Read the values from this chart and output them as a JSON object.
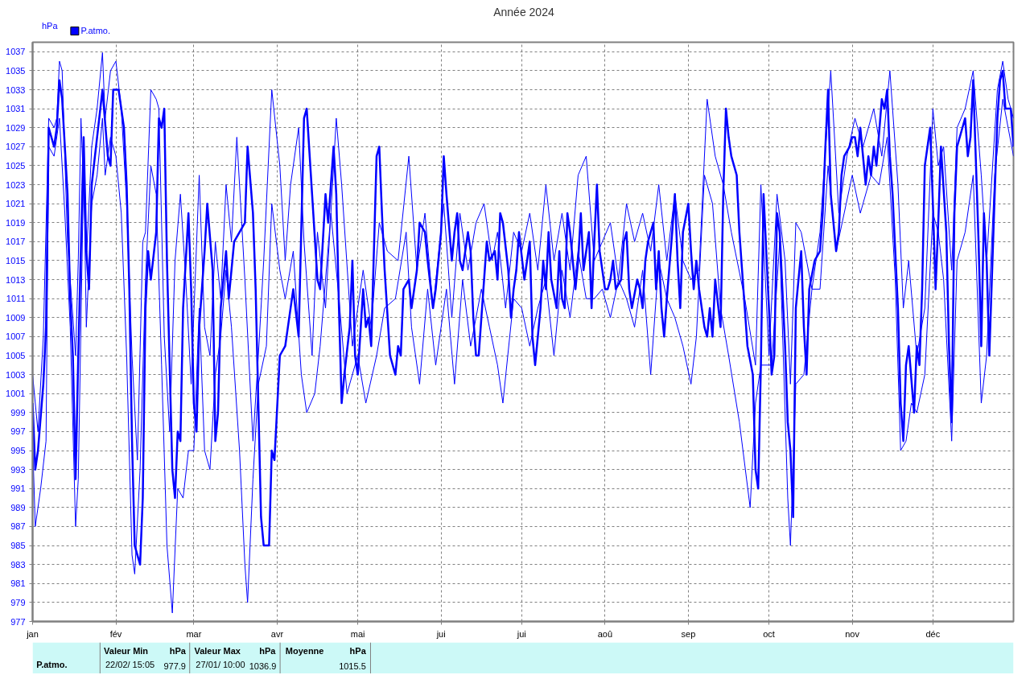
{
  "chart_data": {
    "type": "line",
    "title": "Année 2024",
    "ylabel": "hPa",
    "x": [
      "2024-01-01",
      "2024-01-02",
      "2024-01-03",
      "2024-01-05",
      "2024-01-06",
      "2024-01-07",
      "2024-01-09",
      "2024-01-10",
      "2024-01-11",
      "2024-01-12",
      "2024-01-14",
      "2024-01-15",
      "2024-01-16",
      "2024-01-17",
      "2024-01-18",
      "2024-01-20",
      "2024-01-21",
      "2024-01-22",
      "2024-01-23",
      "2024-01-25",
      "2024-01-27",
      "2024-01-29",
      "2024-01-30",
      "2024-01-31",
      "2024-02-02",
      "2024-02-04",
      "2024-02-05",
      "2024-02-06",
      "2024-02-07",
      "2024-02-08",
      "2024-02-10",
      "2024-02-11",
      "2024-02-12",
      "2024-02-13",
      "2024-02-14",
      "2024-02-16",
      "2024-02-17",
      "2024-02-18",
      "2024-02-19",
      "2024-02-20",
      "2024-02-22",
      "2024-02-23",
      "2024-02-24",
      "2024-02-25",
      "2024-02-26",
      "2024-02-28",
      "2024-02-29",
      "2024-03-01",
      "2024-03-02",
      "2024-03-03",
      "2024-03-05",
      "2024-03-06",
      "2024-03-08",
      "2024-03-09",
      "2024-03-10",
      "2024-03-11",
      "2024-03-13",
      "2024-03-14",
      "2024-03-16",
      "2024-03-18",
      "2024-03-20",
      "2024-03-21",
      "2024-03-23",
      "2024-03-24",
      "2024-03-25",
      "2024-03-26",
      "2024-03-27",
      "2024-03-29",
      "2024-03-30",
      "2024-03-31",
      "2024-04-02",
      "2024-04-04",
      "2024-04-05",
      "2024-04-07",
      "2024-04-09",
      "2024-04-11",
      "2024-04-12",
      "2024-04-14",
      "2024-04-16",
      "2024-04-17",
      "2024-04-18",
      "2024-04-19",
      "2024-04-20",
      "2024-04-22",
      "2024-04-23",
      "2024-04-24",
      "2024-04-25",
      "2024-04-26",
      "2024-04-28",
      "2024-04-29",
      "2024-04-30",
      "2024-05-01",
      "2024-05-03",
      "2024-05-04",
      "2024-05-05",
      "2024-05-06",
      "2024-05-08",
      "2024-05-09",
      "2024-05-10",
      "2024-05-11",
      "2024-05-13",
      "2024-05-15",
      "2024-05-16",
      "2024-05-17",
      "2024-05-18",
      "2024-05-20",
      "2024-05-21",
      "2024-05-23",
      "2024-05-24",
      "2024-05-26",
      "2024-05-27",
      "2024-05-29",
      "2024-05-30",
      "2024-06-01",
      "2024-06-02",
      "2024-06-03",
      "2024-06-05",
      "2024-06-06",
      "2024-06-07",
      "2024-06-08",
      "2024-06-09",
      "2024-06-11",
      "2024-06-12",
      "2024-06-13",
      "2024-06-14",
      "2024-06-15",
      "2024-06-17",
      "2024-06-18",
      "2024-06-19",
      "2024-06-21",
      "2024-06-22",
      "2024-06-23",
      "2024-06-24",
      "2024-06-26",
      "2024-06-27",
      "2024-06-28",
      "2024-06-29",
      "2024-06-30",
      "2024-07-02",
      "2024-07-03",
      "2024-07-04",
      "2024-07-05",
      "2024-07-06",
      "2024-07-08",
      "2024-07-09",
      "2024-07-10",
      "2024-07-11",
      "2024-07-12",
      "2024-07-14",
      "2024-07-15",
      "2024-07-16",
      "2024-07-17",
      "2024-07-18",
      "2024-07-19",
      "2024-07-21",
      "2024-07-22",
      "2024-07-23",
      "2024-07-24",
      "2024-07-26",
      "2024-07-27",
      "2024-07-28",
      "2024-07-29",
      "2024-07-30",
      "2024-08-01",
      "2024-08-02",
      "2024-08-03",
      "2024-08-04",
      "2024-08-05",
      "2024-08-07",
      "2024-08-08",
      "2024-08-09",
      "2024-08-10",
      "2024-08-11",
      "2024-08-13",
      "2024-08-14",
      "2024-08-15",
      "2024-08-16",
      "2024-08-17",
      "2024-08-19",
      "2024-08-20",
      "2024-08-21",
      "2024-08-22",
      "2024-08-23",
      "2024-08-24",
      "2024-08-26",
      "2024-08-27",
      "2024-08-28",
      "2024-08-29",
      "2024-08-30",
      "2024-09-01",
      "2024-09-02",
      "2024-09-03",
      "2024-09-04",
      "2024-09-05",
      "2024-09-07",
      "2024-09-08",
      "2024-09-09",
      "2024-09-10",
      "2024-09-11",
      "2024-09-13",
      "2024-09-14",
      "2024-09-15",
      "2024-09-16",
      "2024-09-17",
      "2024-09-19",
      "2024-09-20",
      "2024-09-21",
      "2024-09-22",
      "2024-09-23",
      "2024-09-25",
      "2024-09-26",
      "2024-09-27",
      "2024-09-28",
      "2024-09-29",
      "2024-10-01",
      "2024-10-02",
      "2024-10-03",
      "2024-10-04",
      "2024-10-05",
      "2024-10-07",
      "2024-10-08",
      "2024-10-09",
      "2024-10-10",
      "2024-10-11",
      "2024-10-13",
      "2024-10-14",
      "2024-10-15",
      "2024-10-16",
      "2024-10-18",
      "2024-10-20",
      "2024-10-21",
      "2024-10-22",
      "2024-10-23",
      "2024-10-24",
      "2024-10-26",
      "2024-10-27",
      "2024-10-28",
      "2024-10-29",
      "2024-10-31",
      "2024-11-01",
      "2024-11-02",
      "2024-11-03",
      "2024-11-04",
      "2024-11-06",
      "2024-11-07",
      "2024-11-08",
      "2024-11-09",
      "2024-11-10",
      "2024-11-12",
      "2024-11-13",
      "2024-11-14",
      "2024-11-15",
      "2024-11-16",
      "2024-11-18",
      "2024-11-19",
      "2024-11-20",
      "2024-11-21",
      "2024-11-22",
      "2024-11-24",
      "2024-11-25",
      "2024-11-26",
      "2024-11-27",
      "2024-11-28",
      "2024-11-30",
      "2024-12-01",
      "2024-12-02",
      "2024-12-03",
      "2024-12-04",
      "2024-12-06",
      "2024-12-07",
      "2024-12-08",
      "2024-12-09",
      "2024-12-10",
      "2024-12-12",
      "2024-12-13",
      "2024-12-14",
      "2024-12-15",
      "2024-12-16",
      "2024-12-18",
      "2024-12-19",
      "2024-12-20",
      "2024-12-21",
      "2024-12-22",
      "2024-12-24",
      "2024-12-25",
      "2024-12-26",
      "2024-12-27",
      "2024-12-28",
      "2024-12-30",
      "2024-12-31"
    ],
    "series": [
      {
        "name": "P.atmo.",
        "color": "#0000ff",
        "values": [
          1000,
          993,
          995,
          1002,
          1008,
          1029,
          1027,
          1029,
          1034,
          1032,
          1022,
          1011,
          1005,
          992,
          1005,
          1028,
          1016,
          1012,
          1023,
          1028,
          1033,
          1026,
          1025,
          1033,
          1033,
          1029,
          1023,
          1012,
          996,
          985,
          983,
          990,
          1010,
          1016,
          1013,
          1018,
          1030,
          1029,
          1031,
          1015,
          993,
          990,
          997,
          996,
          1010,
          1020,
          1012,
          1000,
          997,
          1008,
          1016,
          1021,
          1014,
          996,
          999,
          1010,
          1016,
          1011,
          1017,
          1018,
          1019,
          1027,
          1020,
          1012,
          1000,
          988,
          985,
          985,
          995,
          994,
          1005,
          1006,
          1008,
          1012,
          1007,
          1030,
          1031,
          1022,
          1013,
          1012,
          1017,
          1022,
          1019,
          1027,
          1022,
          1010,
          1000,
          1003,
          1008,
          1015,
          1005,
          1003,
          1012,
          1008,
          1009,
          1006,
          1026,
          1027,
          1020,
          1014,
          1005,
          1003,
          1006,
          1005,
          1012,
          1013,
          1010,
          1014,
          1019,
          1018,
          1015,
          1010,
          1012,
          1018,
          1026,
          1022,
          1015,
          1018,
          1020,
          1015,
          1014,
          1018,
          1016,
          1009,
          1005,
          1005,
          1013,
          1017,
          1015,
          1016,
          1013,
          1020,
          1019,
          1014,
          1009,
          1012,
          1014,
          1018,
          1013,
          1015,
          1017,
          1007,
          1004,
          1010,
          1015,
          1012,
          1018,
          1013,
          1010,
          1016,
          1011,
          1010,
          1020,
          1018,
          1012,
          1015,
          1020,
          1014,
          1018,
          1010,
          1017,
          1023,
          1016,
          1012,
          1012,
          1013,
          1015,
          1012,
          1013,
          1017,
          1018,
          1012,
          1010,
          1013,
          1012,
          1010,
          1015,
          1017,
          1019,
          1012,
          1016,
          1010,
          1007,
          1011,
          1018,
          1022,
          1015,
          1010,
          1018,
          1021,
          1016,
          1012,
          1015,
          1012,
          1008,
          1007,
          1010,
          1007,
          1013,
          1008,
          1022,
          1031,
          1028,
          1026,
          1024,
          1018,
          1014,
          1010,
          1006,
          1003,
          993,
          991,
          1004,
          1022,
          1010,
          1003,
          1005,
          1020,
          1018,
          1006,
          998,
          995,
          988,
          1010,
          1016,
          1008,
          1003,
          1012,
          1015,
          1016,
          1020,
          1027,
          1033,
          1022,
          1016,
          1018,
          1024,
          1026,
          1027,
          1028,
          1028,
          1026,
          1029,
          1023,
          1026,
          1024,
          1027,
          1025,
          1032,
          1031,
          1033,
          1026,
          1022,
          1010,
          1000,
          996,
          1004,
          1006,
          999,
          1006,
          1004,
          1012,
          1025,
          1029,
          1021,
          1012,
          1019,
          1027,
          1018,
          1006,
          998,
          1020,
          1027,
          1029,
          1030,
          1026,
          1028,
          1034,
          1017,
          1006,
          1020,
          1015,
          1005,
          1022,
          1030,
          1034,
          1035,
          1031,
          1031,
          1027
        ]
      },
      {
        "color": "#0000ff",
        "x": [
          "2024-01-01",
          "2024-01-03",
          "2024-01-05",
          "2024-01-07",
          "2024-01-09",
          "2024-01-10",
          "2024-01-11",
          "2024-01-12",
          "2024-01-14",
          "2024-01-16",
          "2024-01-17",
          "2024-01-18",
          "2024-01-19",
          "2024-01-21",
          "2024-01-23",
          "2024-01-25",
          "2024-01-27",
          "2024-01-28",
          "2024-01-30",
          "2024-02-01",
          "2024-02-03",
          "2024-02-05",
          "2024-02-07",
          "2024-02-09",
          "2024-02-11",
          "2024-02-12",
          "2024-02-14",
          "2024-02-16",
          "2024-02-17",
          "2024-02-19",
          "2024-02-21",
          "2024-02-23",
          "2024-02-25",
          "2024-02-27",
          "2024-02-29",
          "2024-03-03",
          "2024-03-05",
          "2024-03-07",
          "2024-03-09",
          "2024-03-11",
          "2024-03-13",
          "2024-03-15",
          "2024-03-17",
          "2024-03-20",
          "2024-03-23",
          "2024-03-25",
          "2024-03-27",
          "2024-03-30",
          "2024-04-02",
          "2024-04-04",
          "2024-04-06",
          "2024-04-09",
          "2024-04-11",
          "2024-04-14",
          "2024-04-16",
          "2024-04-19",
          "2024-04-23",
          "2024-04-25",
          "2024-04-29",
          "2024-05-03",
          "2024-05-06",
          "2024-05-09",
          "2024-05-12",
          "2024-05-16",
          "2024-05-20",
          "2024-05-23",
          "2024-05-26",
          "2024-05-29",
          "2024-06-02",
          "2024-06-05",
          "2024-06-08",
          "2024-06-11",
          "2024-06-14",
          "2024-06-17",
          "2024-06-20",
          "2024-06-22",
          "2024-06-25",
          "2024-06-28",
          "2024-07-01",
          "2024-07-04",
          "2024-07-07",
          "2024-07-10",
          "2024-07-13",
          "2024-07-16",
          "2024-07-19",
          "2024-07-22",
          "2024-07-25",
          "2024-07-28",
          "2024-07-31",
          "2024-08-03",
          "2024-08-06",
          "2024-08-09",
          "2024-08-12",
          "2024-08-15",
          "2024-08-18",
          "2024-08-21",
          "2024-08-24",
          "2024-08-27",
          "2024-08-30",
          "2024-09-02",
          "2024-09-05",
          "2024-09-08",
          "2024-09-11",
          "2024-09-14",
          "2024-09-17",
          "2024-09-22",
          "2024-09-26",
          "2024-09-28",
          "2024-10-01",
          "2024-10-04",
          "2024-10-07",
          "2024-10-09",
          "2024-10-11",
          "2024-10-13",
          "2024-10-17",
          "2024-10-20",
          "2024-10-24",
          "2024-10-27",
          "2024-10-30",
          "2024-11-02",
          "2024-11-05",
          "2024-11-09",
          "2024-11-12",
          "2024-11-15",
          "2024-11-18",
          "2024-11-20",
          "2024-11-22",
          "2024-11-25",
          "2024-11-28",
          "2024-12-01",
          "2024-12-03",
          "2024-12-05",
          "2024-12-08",
          "2024-12-10",
          "2024-12-13",
          "2024-12-16",
          "2024-12-19",
          "2024-12-21",
          "2024-12-25",
          "2024-12-27",
          "2024-12-29",
          "2024-12-31"
        ],
        "values": [
          1003,
          997,
          1007,
          1030,
          1029,
          1030,
          1036,
          1035,
          1017,
          1009,
          1005,
          1015,
          1030,
          1015,
          1027,
          1031,
          1036.9,
          1030,
          1035,
          1036,
          1031,
          1021,
          1005,
          994,
          1017,
          1018,
          1033,
          1032,
          1031,
          1007,
          997,
          1015,
          1022,
          1013,
          1002,
          1024,
          1008,
          1005,
          1017,
          1011,
          1023,
          1017,
          1028,
          1013,
          996,
          1005,
          1015,
          1033,
          1025,
          1015,
          1023,
          1029,
          1017,
          1005,
          1018,
          1010,
          1030,
          1023,
          1006,
          1014,
          1008,
          1019,
          1016,
          1015,
          1026,
          1014,
          1020,
          1010,
          1021,
          1009,
          1020,
          1014,
          1019,
          1021,
          1015,
          1018,
          1010,
          1018,
          1016,
          1020,
          1014,
          1023,
          1015,
          1020,
          1014,
          1024,
          1026,
          1015,
          1017,
          1019,
          1013,
          1021,
          1017,
          1020,
          1016,
          1023,
          1015,
          1022,
          1015,
          1013,
          1014,
          1032,
          1026,
          1023,
          1018,
          1011,
          1004,
          1023,
          1005,
          1022,
          1015,
          1002,
          1019,
          1018,
          1012,
          1018,
          1035,
          1020,
          1026,
          1030,
          1027,
          1031,
          1026,
          1035,
          1023,
          1010,
          1015,
          1005,
          1010,
          1031,
          1025,
          1027,
          1014,
          1029,
          1031,
          1035,
          1024,
          1015,
          1033,
          1036,
          1032,
          1030
        ]
      },
      {
        "color": "#0000ff",
        "x": [
          "2024-01-01",
          "2024-01-02",
          "2024-01-04",
          "2024-01-06",
          "2024-01-07",
          "2024-01-09",
          "2024-01-11",
          "2024-01-13",
          "2024-01-15",
          "2024-01-17",
          "2024-01-18",
          "2024-01-20",
          "2024-01-21",
          "2024-01-23",
          "2024-01-25",
          "2024-01-27",
          "2024-01-28",
          "2024-01-30",
          "2024-02-01",
          "2024-02-03",
          "2024-02-05",
          "2024-02-07",
          "2024-02-08",
          "2024-02-10",
          "2024-02-12",
          "2024-02-14",
          "2024-02-16",
          "2024-02-18",
          "2024-02-20",
          "2024-02-22",
          "2024-02-24",
          "2024-02-26",
          "2024-02-28",
          "2024-03-01",
          "2024-03-03",
          "2024-03-05",
          "2024-03-07",
          "2024-03-09",
          "2024-03-11",
          "2024-03-13",
          "2024-03-15",
          "2024-03-18",
          "2024-03-20",
          "2024-03-21",
          "2024-03-23",
          "2024-03-25",
          "2024-03-28",
          "2024-03-30",
          "2024-04-02",
          "2024-04-04",
          "2024-04-07",
          "2024-04-10",
          "2024-04-12",
          "2024-04-15",
          "2024-04-17",
          "2024-04-21",
          "2024-04-24",
          "2024-04-27",
          "2024-05-01",
          "2024-05-04",
          "2024-05-08",
          "2024-05-11",
          "2024-05-15",
          "2024-05-19",
          "2024-05-21",
          "2024-05-24",
          "2024-05-27",
          "2024-05-30",
          "2024-06-03",
          "2024-06-06",
          "2024-06-09",
          "2024-06-12",
          "2024-06-16",
          "2024-06-19",
          "2024-06-22",
          "2024-06-24",
          "2024-06-28",
          "2024-07-01",
          "2024-07-04",
          "2024-07-07",
          "2024-07-10",
          "2024-07-13",
          "2024-07-16",
          "2024-07-19",
          "2024-07-22",
          "2024-07-25",
          "2024-07-28",
          "2024-07-31",
          "2024-08-03",
          "2024-08-06",
          "2024-08-09",
          "2024-08-12",
          "2024-08-15",
          "2024-08-18",
          "2024-08-21",
          "2024-08-24",
          "2024-08-27",
          "2024-08-30",
          "2024-09-02",
          "2024-09-04",
          "2024-09-07",
          "2024-09-10",
          "2024-09-13",
          "2024-09-16",
          "2024-09-20",
          "2024-09-24",
          "2024-09-26",
          "2024-09-28",
          "2024-10-02",
          "2024-10-05",
          "2024-10-08",
          "2024-10-09",
          "2024-10-11",
          "2024-10-14",
          "2024-10-17",
          "2024-10-20",
          "2024-10-23",
          "2024-10-26",
          "2024-10-29",
          "2024-11-01",
          "2024-11-04",
          "2024-11-08",
          "2024-11-11",
          "2024-11-14",
          "2024-11-17",
          "2024-11-19",
          "2024-11-21",
          "2024-11-23",
          "2024-11-25",
          "2024-11-28",
          "2024-12-01",
          "2024-12-03",
          "2024-12-05",
          "2024-12-08",
          "2024-12-10",
          "2024-12-13",
          "2024-12-16",
          "2024-12-19",
          "2024-12-21",
          "2024-12-24",
          "2024-12-27",
          "2024-12-29",
          "2024-12-31"
        ],
        "values": [
          996,
          987,
          991,
          996,
          1027,
          1026,
          1030,
          1020,
          1008,
          987,
          992,
          1025,
          1008,
          1021,
          1024,
          1030,
          1024,
          1028,
          1026,
          1020,
          1005,
          984,
          982,
          993,
          1013,
          1025,
          1022,
          1004,
          985,
          977.9,
          991,
          990,
          995,
          995,
          1010,
          995,
          993,
          1003,
          1007,
          1014,
          1008,
          995,
          983,
          979,
          992,
          1002,
          1006,
          1021,
          1014,
          1011,
          1016,
          1003,
          999,
          1001,
          1006,
          1020,
          1011,
          1001,
          1005,
          1000,
          1005,
          1010,
          1011,
          1018,
          1008,
          1002,
          1012,
          1004,
          1012,
          1002,
          1013,
          1006,
          1012,
          1008,
          1004,
          1000,
          1011,
          1010,
          1006,
          1010,
          1013,
          1005,
          1014,
          1009,
          1016,
          1011,
          1011,
          1012,
          1009,
          1013,
          1011,
          1008,
          1014,
          1003,
          1015,
          1011,
          1009,
          1006,
          1002,
          1007,
          1024,
          1021,
          1010,
          1005,
          998,
          989,
          1000,
          1004,
          1004,
          1017,
          990,
          985,
          1002,
          1003,
          1012,
          1012,
          1025,
          1016,
          1020,
          1024,
          1020,
          1024,
          1023,
          1028,
          1013,
          995,
          996,
          1000,
          999,
          1003,
          1020,
          1018,
          1013,
          996,
          1015,
          1018,
          1024,
          1000,
          1005,
          1024,
          1032,
          1029,
          1026
        ]
      }
    ],
    "xlim": [
      "2024-01-01",
      "2024-12-31"
    ],
    "xticks": [
      {
        "value": "2024-01-01",
        "label": "jan"
      },
      {
        "value": "2024-02-01",
        "label": "fév"
      },
      {
        "value": "2024-03-01",
        "label": "mar"
      },
      {
        "value": "2024-04-01",
        "label": "avr"
      },
      {
        "value": "2024-05-01",
        "label": "mai"
      },
      {
        "value": "2024-06-01",
        "label": "jui"
      },
      {
        "value": "2024-07-01",
        "label": "jui"
      },
      {
        "value": "2024-08-01",
        "label": "aoû"
      },
      {
        "value": "2024-09-01",
        "label": "sep"
      },
      {
        "value": "2024-10-01",
        "label": "oct"
      },
      {
        "value": "2024-11-01",
        "label": "nov"
      },
      {
        "value": "2024-12-01",
        "label": "déc"
      }
    ],
    "ylim": [
      977,
      1038
    ],
    "yticks": [
      977,
      979,
      981,
      983,
      985,
      987,
      989,
      991,
      993,
      995,
      997,
      999,
      1001,
      1003,
      1005,
      1007,
      1009,
      1011,
      1013,
      1015,
      1017,
      1019,
      1021,
      1023,
      1025,
      1027,
      1029,
      1031,
      1033,
      1035,
      1037
    ],
    "grid": true,
    "legend": "top left",
    "line_style": "solid",
    "marker": "none",
    "annotations": [
      "P.atmo.",
      "Valeur Min",
      "hPa",
      "22/02/ 15:05",
      "977.9",
      "Valeur Max",
      "hPa",
      "27/01/ 10:00",
      "1036.9",
      "Moyenne",
      "hPa",
      "1015.5"
    ]
  }
}
